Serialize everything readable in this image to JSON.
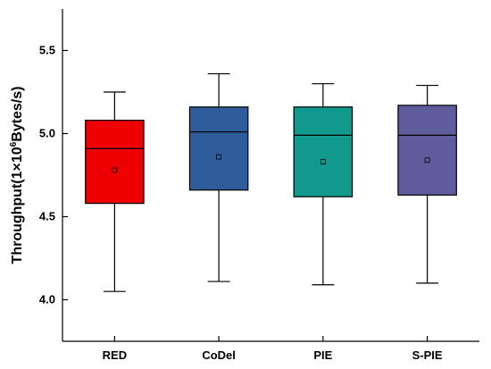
{
  "chart_data": {
    "type": "box",
    "title": "",
    "xlabel": "",
    "ylabel_prefix": "Throughput(1×10",
    "ylabel_exp": "6",
    "ylabel_suffix": "Bytes/s)",
    "ylim": [
      3.75,
      5.75
    ],
    "yticks": [
      {
        "value": 4.0,
        "label": "4.0"
      },
      {
        "value": 4.5,
        "label": "4.5"
      },
      {
        "value": 5.0,
        "label": "5.0"
      },
      {
        "value": 5.5,
        "label": "5.5"
      }
    ],
    "categories": [
      "RED",
      "CoDel",
      "PIE",
      "S-PIE"
    ],
    "boxes": [
      {
        "category": "RED",
        "min": 4.05,
        "q1": 4.58,
        "median": 4.91,
        "q3": 5.08,
        "max": 5.25,
        "mean": 4.78,
        "color": "#ee0000"
      },
      {
        "category": "CoDel",
        "min": 4.11,
        "q1": 4.66,
        "median": 5.01,
        "q3": 5.16,
        "max": 5.36,
        "mean": 4.86,
        "color": "#2f5d9b"
      },
      {
        "category": "PIE",
        "min": 4.09,
        "q1": 4.62,
        "median": 4.99,
        "q3": 5.16,
        "max": 5.3,
        "mean": 4.83,
        "color": "#11998e"
      },
      {
        "category": "S-PIE",
        "min": 4.1,
        "q1": 4.63,
        "median": 4.99,
        "q3": 5.17,
        "max": 5.29,
        "mean": 4.84,
        "color": "#5e5c9c"
      }
    ],
    "grid": false,
    "legend": "none"
  }
}
